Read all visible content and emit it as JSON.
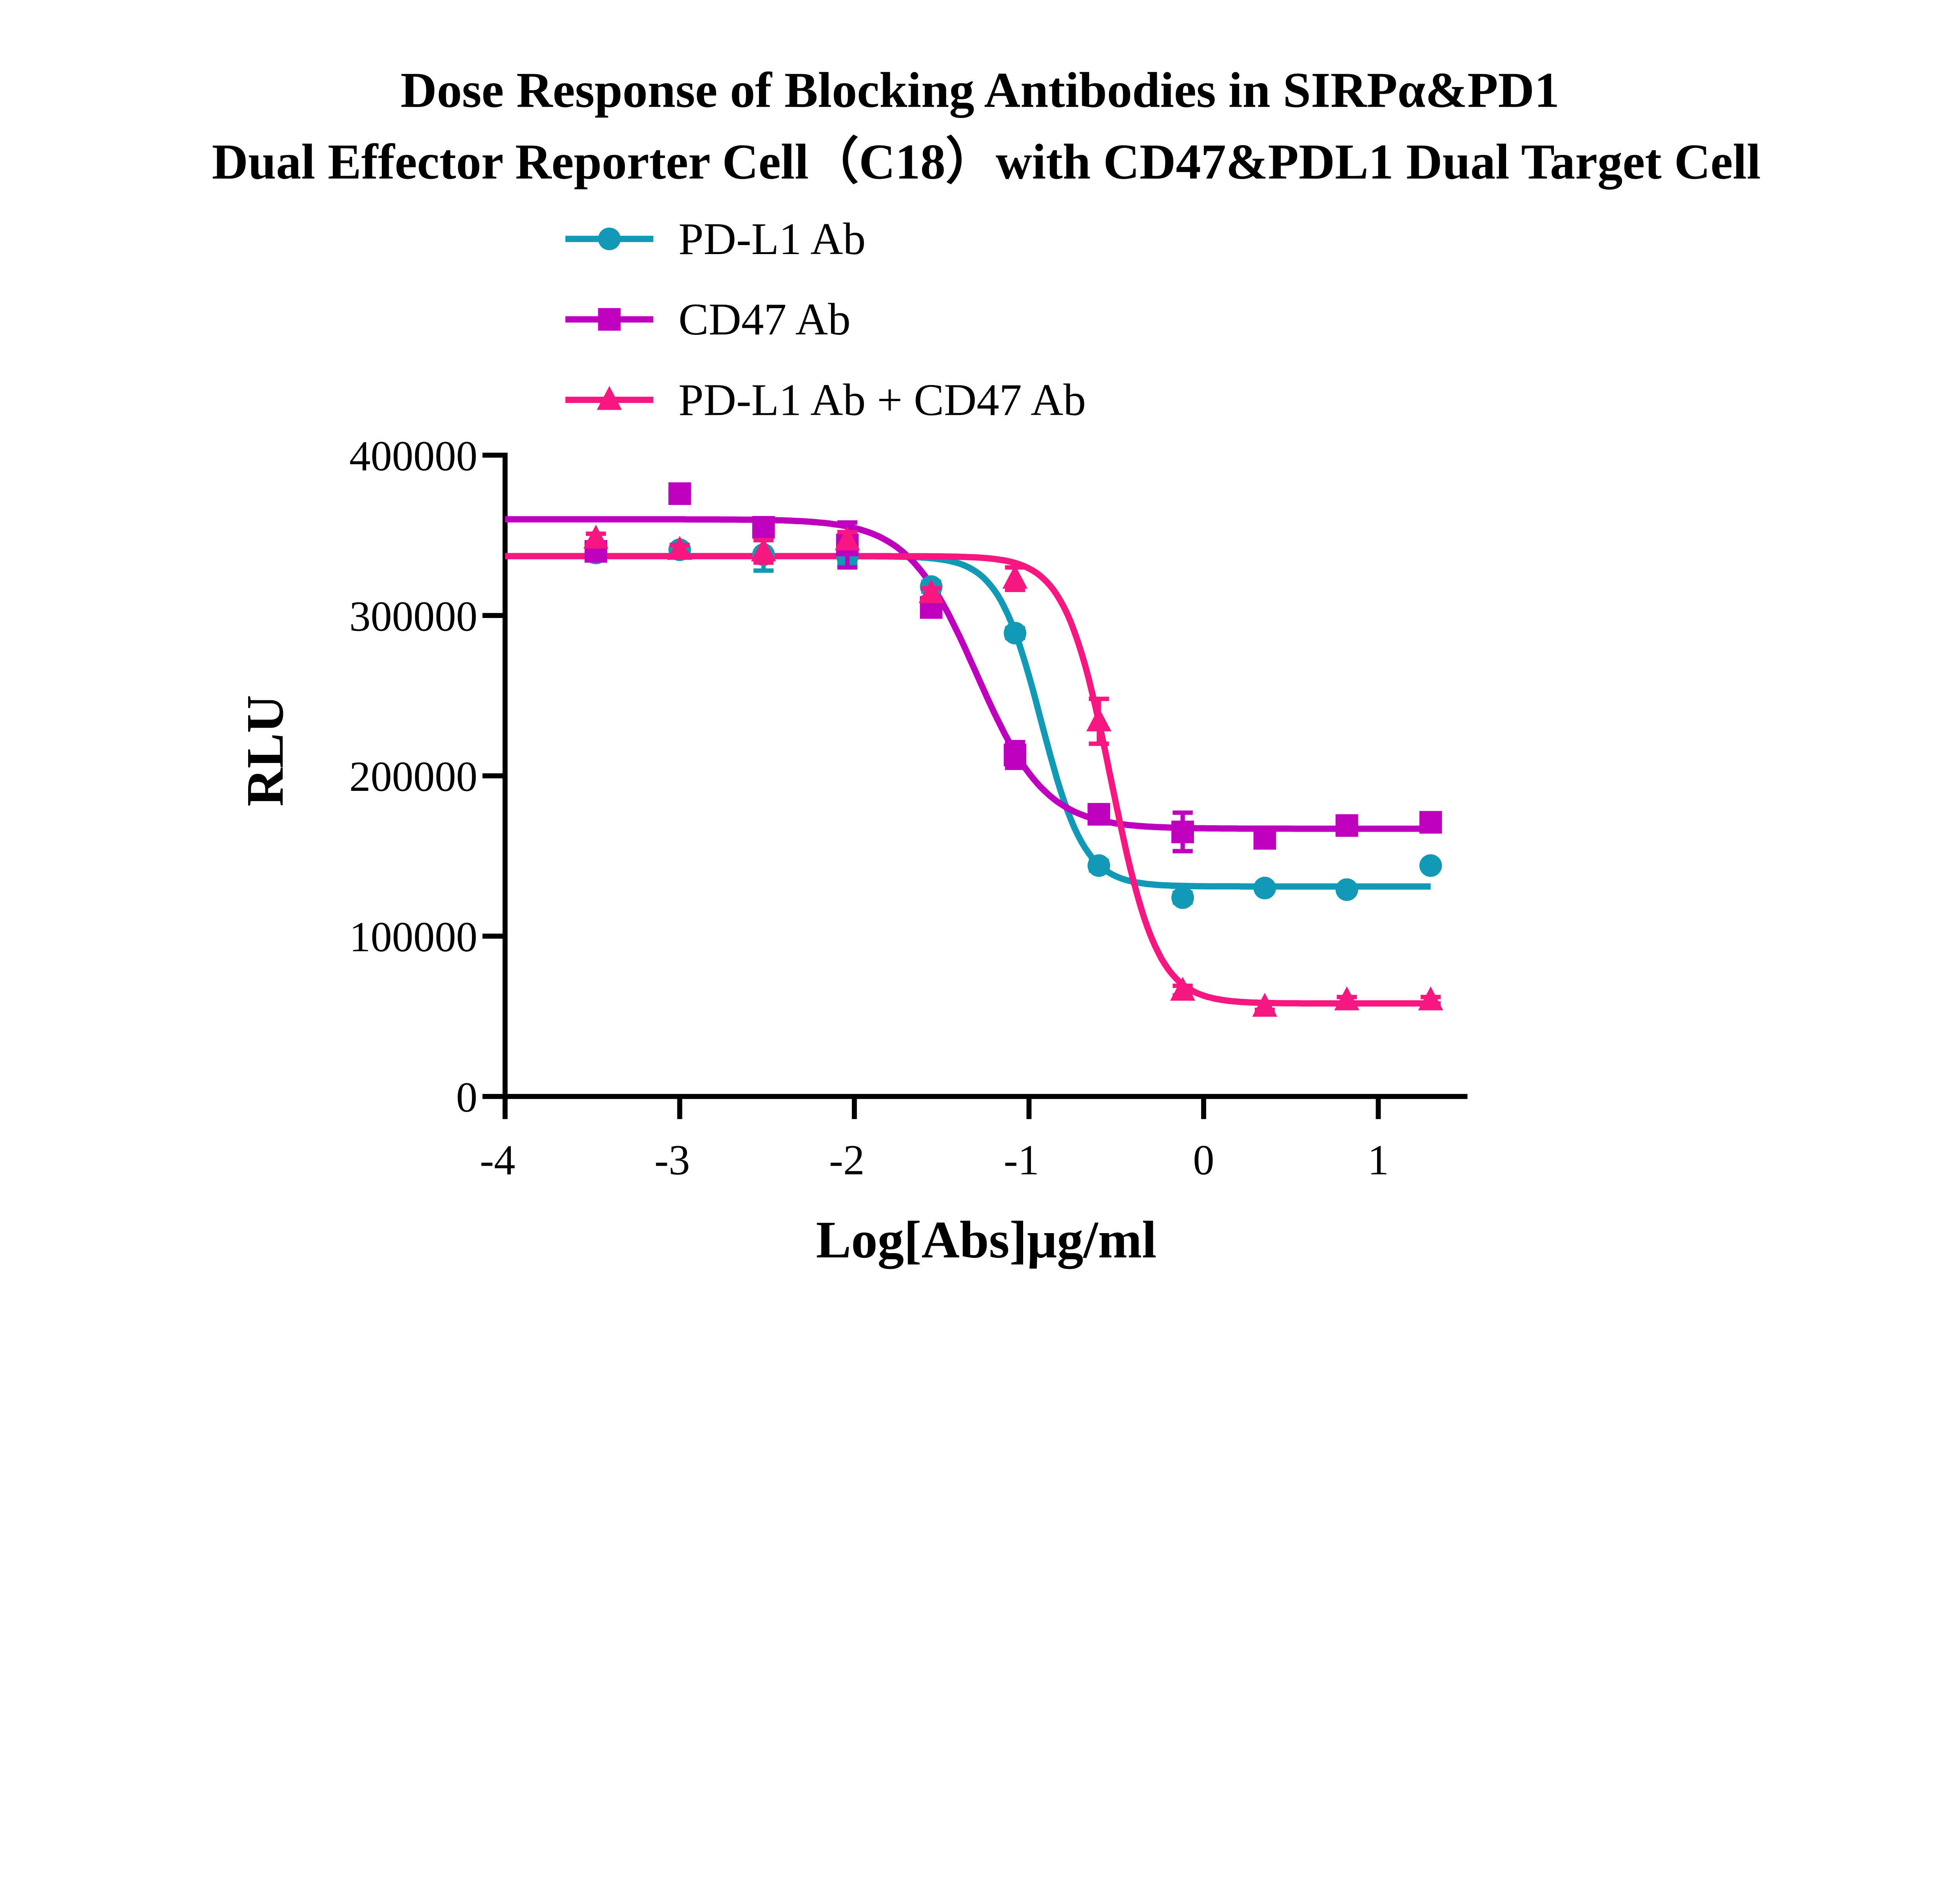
{
  "chart_data": {
    "type": "scatter",
    "title": [
      "Dose Response of Blocking Antibodies in SIRPα&PD1",
      "Dual Effector Reporter Cell（C18）with CD47&PDL1 Dual Target Cell"
    ],
    "xlabel": "Log[Abs]μg/ml",
    "ylabel": "RLU",
    "xlim": [
      -4,
      1.5
    ],
    "ylim": [
      0,
      400000
    ],
    "xticks": [
      "-4",
      "-3",
      "-2",
      "-1",
      "0",
      "1"
    ],
    "yticks": [
      "0",
      "100000",
      "200000",
      "300000",
      "400000"
    ],
    "grid": false,
    "legend_position": "top",
    "x": [
      -3.48,
      -3.0,
      -2.52,
      -2.04,
      -1.56,
      -1.08,
      -0.6,
      -0.12,
      0.35,
      0.82,
      1.3
    ],
    "series": [
      {
        "name": "PD-L1 Ab",
        "color": "#1199B5",
        "marker": "circle",
        "values": [
          339000,
          341000,
          338000,
          337000,
          318000,
          289000,
          144000,
          124000,
          130000,
          129000,
          144000
        ],
        "errors": [
          3000,
          3000,
          10000,
          5000,
          3000,
          3000,
          3000,
          3000,
          2000,
          2000,
          2000
        ],
        "fit": {
          "top": 337000,
          "bottom": 131000,
          "logIC50": -0.93,
          "hill": 3.5
        }
      },
      {
        "name": "CD47 Ab",
        "color": "#BE00BE",
        "marker": "square",
        "values": [
          340000,
          376000,
          355000,
          344000,
          305000,
          213000,
          176000,
          165000,
          161000,
          169000,
          171000
        ],
        "errors": [
          3000,
          3000,
          3000,
          14000,
          3000,
          8000,
          3000,
          12000,
          3000,
          3000,
          3000
        ],
        "fit": {
          "top": 360000,
          "bottom": 167000,
          "logIC50": -1.3,
          "hill": 2.2
        }
      },
      {
        "name": "PD-L1 Ab + CD47 Ab",
        "color": "#F71781",
        "marker": "triangle",
        "values": [
          348000,
          341000,
          340000,
          347000,
          314000,
          323000,
          234000,
          66000,
          56000,
          60000,
          60000
        ],
        "errors": [
          3000,
          3000,
          7000,
          5000,
          3000,
          7000,
          14000,
          3000,
          2000,
          2000,
          2000
        ],
        "fit": {
          "top": 337000,
          "bottom": 58000,
          "logIC50": -0.53,
          "hill": 3.3
        }
      }
    ]
  }
}
